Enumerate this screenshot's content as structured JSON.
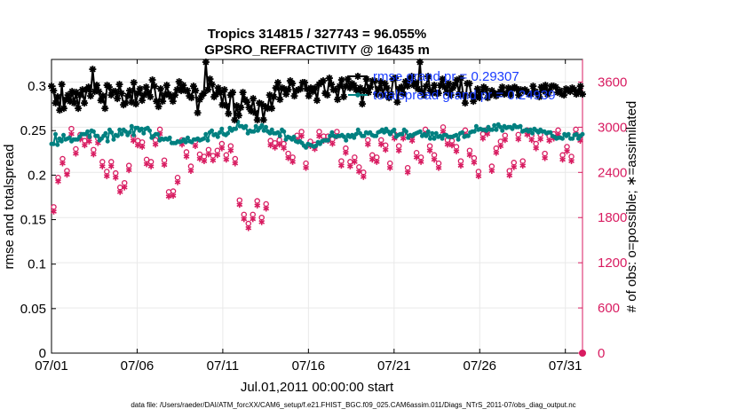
{
  "chart_data": {
    "type": "line",
    "title": "Tropics 314815 / 327743 = 96.055%",
    "subtitle": "GPSRO_REFRACTIVITY @ 16435 m",
    "xlabel": "Jul.01,2011 00:00:00 start",
    "ylabel_left": "rmse and totalspread",
    "ylabel_right": "# of obs: o=possible; ∗=assimilated",
    "x_tick_labels": [
      "07/01",
      "07/06",
      "07/11",
      "07/16",
      "07/21",
      "07/26",
      "07/31"
    ],
    "x_tick_days": [
      1,
      6,
      11,
      16,
      21,
      26,
      31
    ],
    "xlim_days": [
      1,
      32
    ],
    "ylim_left": [
      0,
      0.33
    ],
    "ylim_right": [
      0,
      3900
    ],
    "y_ticks_left": [
      "0",
      "0.05",
      "0.1",
      "0.15",
      "0.2",
      "0.25",
      "0.3"
    ],
    "y_ticks_right": [
      "0",
      "600",
      "1200",
      "1800",
      "2400",
      "3000",
      "3600"
    ],
    "colors": {
      "rmse": "#000000",
      "spread": "#008080",
      "obs": "#d81b60",
      "legend_text": "#1a3cff",
      "grid": "#e9e9e9"
    },
    "legend": [
      {
        "label": "rmse grand pr = 0.29307",
        "series": "rmse"
      },
      {
        "label": "totalspread grand pr = 0.24939",
        "series": "totalspread"
      }
    ],
    "series": [
      {
        "name": "rmse",
        "axis": "left",
        "values": [
          0.3,
          0.295,
          0.281,
          0.288,
          0.273,
          0.302,
          0.275,
          0.285,
          0.29,
          0.283,
          0.294,
          0.281,
          0.293,
          0.275,
          0.29,
          0.296,
          0.281,
          0.296,
          0.299,
          0.289,
          0.319,
          0.294,
          0.301,
          0.294,
          0.284,
          0.289,
          0.275,
          0.301,
          0.299,
          0.29,
          0.294,
          0.294,
          0.286,
          0.302,
          0.292,
          0.279,
          0.281,
          0.289,
          0.295,
          0.282,
          0.304,
          0.28,
          0.292,
          0.297,
          0.284,
          0.29,
          0.299,
          0.293,
          0.288,
          0.307,
          0.3,
          0.283,
          0.277,
          0.297,
          0.283,
          0.29,
          0.301,
          0.291,
          0.288,
          0.283,
          0.29,
          0.296,
          0.305,
          0.295,
          0.301,
          0.295,
          0.295,
          0.289,
          0.287,
          0.3,
          0.295,
          0.27,
          0.285,
          0.289,
          0.292,
          0.327,
          0.296,
          0.308,
          0.302,
          0.288,
          0.291,
          0.298,
          0.293,
          0.279,
          0.296,
          0.278,
          0.269,
          0.29,
          0.293,
          0.262,
          0.278,
          0.267,
          0.276,
          0.293,
          0.285,
          0.282,
          0.276,
          0.272,
          0.286,
          0.27,
          0.262,
          0.281,
          0.28,
          0.262,
          0.277,
          0.275,
          0.29,
          0.275,
          0.288,
          0.298,
          0.304,
          0.285,
          0.298,
          0.297,
          0.291,
          0.296,
          0.306,
          0.303,
          0.289,
          0.295,
          0.296,
          0.297,
          0.304,
          0.304,
          0.297,
          0.289,
          0.298,
          0.294,
          0.298,
          0.284,
          0.302,
          0.304,
          0.306,
          0.292,
          0.29,
          0.309,
          0.302,
          0.296,
          0.296,
          0.285,
          0.3,
          0.307,
          0.288,
          0.3,
          0.308,
          0.298,
          0.303,
          0.301,
          0.296,
          0.295,
          0.298,
          0.28,
          0.295,
          0.308,
          0.293,
          0.299,
          0.306,
          0.306,
          0.291,
          0.297,
          0.305,
          0.29,
          0.303,
          0.298,
          0.287,
          0.291,
          0.308,
          0.309,
          0.282,
          0.297,
          0.299,
          0.291,
          0.305,
          0.3,
          0.308,
          0.311,
          0.301,
          0.304,
          0.297,
          0.327,
          0.294,
          0.29,
          0.3,
          0.311,
          0.295,
          0.292,
          0.301,
          0.292,
          0.292,
          0.301,
          0.308,
          0.299,
          0.293,
          0.303,
          0.29,
          0.298,
          0.302,
          0.307,
          0.291,
          0.309,
          0.29,
          0.281,
          0.303,
          0.303,
          0.29,
          0.283,
          0.288,
          0.297,
          0.287,
          0.293,
          0.299,
          0.297,
          0.287,
          0.29,
          0.295,
          0.292,
          0.289,
          0.291,
          0.294,
          0.299,
          0.291,
          0.292,
          0.298,
          0.29,
          0.297,
          0.299,
          0.297,
          0.29,
          0.296,
          0.295,
          0.296,
          0.294,
          0.291,
          0.291,
          0.3,
          0.294,
          0.292,
          0.288,
          0.299,
          0.295,
          0.301,
          0.291,
          0.295,
          0.3,
          0.3,
          0.299,
          0.293,
          0.295,
          0.291,
          0.29,
          0.297,
          0.295,
          0.294,
          0.298,
          0.296,
          0.291,
          0.293,
          0.3,
          0.291
        ]
      },
      {
        "name": "totalspread",
        "axis": "left",
        "values": [
          0.235,
          0.235,
          0.246,
          0.234,
          0.241,
          0.238,
          0.245,
          0.24,
          0.241,
          0.242,
          0.238,
          0.24,
          0.24,
          0.24,
          0.243,
          0.246,
          0.246,
          0.246,
          0.249,
          0.243,
          0.25,
          0.249,
          0.244,
          0.244,
          0.239,
          0.241,
          0.244,
          0.247,
          0.238,
          0.251,
          0.248,
          0.24,
          0.245,
          0.244,
          0.251,
          0.246,
          0.251,
          0.249,
          0.245,
          0.248,
          0.255,
          0.245,
          0.253,
          0.253,
          0.25,
          0.252,
          0.247,
          0.252,
          0.253,
          0.25,
          0.242,
          0.244,
          0.246,
          0.246,
          0.239,
          0.241,
          0.24,
          0.241,
          0.24,
          0.242,
          0.236,
          0.236,
          0.236,
          0.238,
          0.237,
          0.238,
          0.24,
          0.237,
          0.242,
          0.238,
          0.237,
          0.24,
          0.24,
          0.241,
          0.239,
          0.24,
          0.241,
          0.246,
          0.239,
          0.248,
          0.25,
          0.245,
          0.246,
          0.243,
          0.248,
          0.252,
          0.246,
          0.245,
          0.247,
          0.253,
          0.25,
          0.252,
          0.252,
          0.26,
          0.255,
          0.255,
          0.253,
          0.255,
          0.247,
          0.25,
          0.249,
          0.249,
          0.255,
          0.25,
          0.253,
          0.256,
          0.25,
          0.254,
          0.249,
          0.247,
          0.251,
          0.247,
          0.247,
          0.248,
          0.244,
          0.251,
          0.249,
          0.24,
          0.243,
          0.242,
          0.24,
          0.243,
          0.238,
          0.237,
          0.238,
          0.236,
          0.233,
          0.231,
          0.235,
          0.234,
          0.233,
          0.232,
          0.233,
          0.237,
          0.235,
          0.238,
          0.239,
          0.239,
          0.239,
          0.244,
          0.248,
          0.244,
          0.243,
          0.244,
          0.244,
          0.245,
          0.243,
          0.239,
          0.245,
          0.243,
          0.245,
          0.242,
          0.246,
          0.251,
          0.247,
          0.244,
          0.244,
          0.248,
          0.247,
          0.248,
          0.245,
          0.244,
          0.244,
          0.248,
          0.249,
          0.251,
          0.248,
          0.252,
          0.249,
          0.246,
          0.249,
          0.251,
          0.243,
          0.245,
          0.246,
          0.246,
          0.251,
          0.249,
          0.242,
          0.245,
          0.244,
          0.246,
          0.247,
          0.248,
          0.249,
          0.244,
          0.246,
          0.244,
          0.249,
          0.241,
          0.247,
          0.241,
          0.247,
          0.243,
          0.244,
          0.241,
          0.245,
          0.245,
          0.243,
          0.243,
          0.243,
          0.244,
          0.245,
          0.24,
          0.247,
          0.248,
          0.243,
          0.244,
          0.244,
          0.248,
          0.249,
          0.249,
          0.255,
          0.251,
          0.252,
          0.251,
          0.251,
          0.25,
          0.254,
          0.251,
          0.251,
          0.256,
          0.251,
          0.257,
          0.254,
          0.25,
          0.255,
          0.253,
          0.254,
          0.254,
          0.252,
          0.256,
          0.254,
          0.254,
          0.255,
          0.249,
          0.25,
          0.251,
          0.249,
          0.251,
          0.247,
          0.252,
          0.25,
          0.248,
          0.251,
          0.249,
          0.249,
          0.247,
          0.248,
          0.248,
          0.244,
          0.243,
          0.241,
          0.242,
          0.242,
          0.241,
          0.246,
          0.244,
          0.246,
          0.241,
          0.241,
          0.245,
          0.246,
          0.241,
          0.244,
          0.246
        ]
      },
      {
        "name": "possible_obs",
        "axis": "right",
        "marker": "o",
        "values": [
          1940,
          2330,
          2580,
          2420,
          2980,
          2710,
          2900,
          2820,
          2870,
          2700,
          2850,
          2540,
          2410,
          2540,
          2390,
          2200,
          2260,
          2490,
          2880,
          2820,
          2800,
          2570,
          2540,
          2830,
          2970,
          2560,
          2140,
          2150,
          2330,
          2830,
          2670,
          2480,
          2810,
          2640,
          2610,
          2700,
          2620,
          2690,
          2780,
          2630,
          2750,
          2580,
          2030,
          1840,
          1720,
          1840,
          2020,
          1800,
          1980,
          2820,
          2790,
          2830,
          2780,
          2650,
          2600,
          2890,
          2940,
          2520,
          2810,
          2770,
          2940,
          2880,
          2880,
          2840,
          2940,
          2550,
          2720,
          2540,
          2600,
          2470,
          2400,
          2830,
          2630,
          2600,
          2830,
          2760,
          2520,
          2910,
          2750,
          2910,
          2460,
          2880,
          2660,
          2600,
          2970,
          2750,
          2630,
          2520,
          3000,
          2830,
          2820,
          2740,
          2550,
          2960,
          2690,
          2590,
          2410,
          2910,
          2970,
          2480,
          2720,
          2810,
          2890,
          2420,
          2530,
          2900,
          2550,
          2960,
          2890,
          2780,
          2900,
          2650,
          2880,
          2910,
          2960,
          2630,
          2740,
          2610,
          2970,
          2880
        ]
      },
      {
        "name": "assimilated_obs",
        "axis": "right",
        "marker": "*",
        "values": [
          1880,
          2280,
          2520,
          2370,
          2910,
          2650,
          2840,
          2760,
          2810,
          2640,
          2790,
          2480,
          2350,
          2480,
          2330,
          2140,
          2200,
          2430,
          2820,
          2760,
          2740,
          2510,
          2480,
          2770,
          2910,
          2500,
          2080,
          2090,
          2270,
          2770,
          2610,
          2420,
          2750,
          2580,
          2550,
          2640,
          2560,
          2630,
          2720,
          2570,
          2690,
          2520,
          1970,
          1780,
          1660,
          1780,
          1960,
          1740,
          1920,
          2760,
          2730,
          2770,
          2720,
          2590,
          2540,
          2830,
          2880,
          2460,
          2750,
          2710,
          2880,
          2820,
          2820,
          2780,
          2880,
          2490,
          2660,
          2480,
          2540,
          2410,
          2340,
          2770,
          2570,
          2540,
          2770,
          2700,
          2460,
          2850,
          2690,
          2850,
          2400,
          2820,
          2600,
          2540,
          2910,
          2690,
          2570,
          2460,
          2940,
          2770,
          2760,
          2680,
          2490,
          2900,
          2630,
          2530,
          2350,
          2850,
          2910,
          2420,
          2660,
          2750,
          2830,
          2360,
          2470,
          2840,
          2490,
          2900,
          2830,
          2720,
          2840,
          2590,
          2820,
          2850,
          2900,
          2570,
          2680,
          2550,
          2910,
          2820
        ]
      }
    ]
  },
  "footer": "data file: /Users/raeder/DAI/ATM_forcXX/CAM6_setup/f.e21.FHIST_BGC.f09_025.CAM6assim.011/Diags_NTrS_2011-07/obs_diag_output.nc"
}
